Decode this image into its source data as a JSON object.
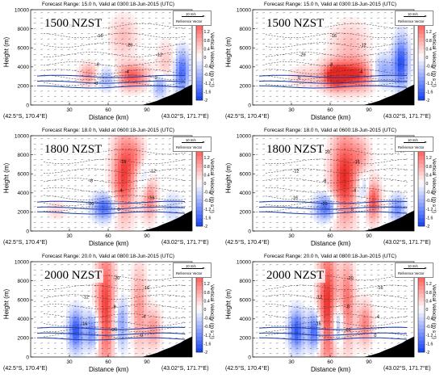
{
  "figure": {
    "ylabel": "Height (m)",
    "xlabel": "Distance (km)",
    "left_end": "(42.5°S, 170.4°E)",
    "right_end": "(43.02°S, 171.7°E)",
    "colorbar_label": "Vertical Velocity (m s⁻¹)",
    "colorbar_ticks": [
      "2",
      "1.6",
      "1.2",
      "0.8",
      "0.4",
      "0",
      "-0.4",
      "-0.8",
      "-1.2",
      "-1.6",
      "-2"
    ],
    "ref_speed": "10 m/s",
    "ref_label": "Reference Vector"
  },
  "chart_data": [
    {
      "type": "heatmap",
      "title": "Forecast Range: 15.0 h, Valid at 0300:18-Jun-2015 (UTC)",
      "time_label": "1500 NZST",
      "xlabel": "Distance (km)",
      "ylabel": "Height (m)",
      "xlim": [
        0,
        125
      ],
      "ylim": [
        0,
        10000
      ],
      "x_ticks": [
        30,
        60,
        90
      ],
      "y_ticks": [
        0,
        2000,
        4000,
        6000,
        8000,
        10000
      ],
      "clim": [
        -2,
        2
      ],
      "temperature_contours": [
        "-20",
        "-16",
        "-20",
        "-12",
        "-8",
        "-4",
        "0",
        "-8"
      ],
      "blobs": [
        {
          "x": 78,
          "z": 3000,
          "w": 1.6,
          "sx": 9,
          "sz": 900
        },
        {
          "x": 45,
          "z": 3200,
          "w": 1.0,
          "sx": 5,
          "sz": 800
        },
        {
          "x": 72,
          "z": 7200,
          "w": 0.6,
          "sx": 7,
          "sz": 1500
        },
        {
          "x": 105,
          "z": 4500,
          "w": 0.5,
          "sx": 5,
          "sz": 1500
        },
        {
          "x": 60,
          "z": 2800,
          "w": -0.9,
          "sx": 6,
          "sz": 800
        },
        {
          "x": 117,
          "z": 3500,
          "w": -1.6,
          "sx": 4,
          "sz": 1500
        },
        {
          "x": 100,
          "z": 2000,
          "w": -1.0,
          "sx": 4,
          "sz": 800
        }
      ]
    },
    {
      "type": "heatmap",
      "title": "Forecast Range: 15.0 h, Valid at 0300:18-Jun-2015 (UTC)",
      "time_label": "1500 NZST",
      "xlabel": "Distance (km)",
      "ylabel": "Height (m)",
      "xlim": [
        0,
        125
      ],
      "ylim": [
        0,
        10000
      ],
      "x_ticks": [
        30,
        60,
        90
      ],
      "y_ticks": [
        0,
        2000,
        4000,
        6000,
        8000,
        10000
      ],
      "clim": [
        -2,
        2
      ],
      "temperature_contours": [
        "-20",
        "-16",
        "-12",
        "-20",
        "-8",
        "-4",
        "0"
      ],
      "blobs": [
        {
          "x": 78,
          "z": 3200,
          "w": 2.0,
          "sx": 14,
          "sz": 1100
        },
        {
          "x": 63,
          "z": 3000,
          "w": 1.6,
          "sx": 6,
          "sz": 900
        },
        {
          "x": 75,
          "z": 6500,
          "w": 0.6,
          "sx": 10,
          "sz": 1500
        },
        {
          "x": 100,
          "z": 3500,
          "w": -1.4,
          "sx": 7,
          "sz": 1100
        },
        {
          "x": 115,
          "z": 4500,
          "w": -1.8,
          "sx": 4,
          "sz": 1800
        },
        {
          "x": 40,
          "z": 3000,
          "w": 0.5,
          "sx": 8,
          "sz": 700
        }
      ]
    },
    {
      "type": "heatmap",
      "title": "Forecast Range: 18.0 h, Valid at 0600:18-Jun-2015 (UTC)",
      "time_label": "1800 NZST",
      "xlabel": "Distance (km)",
      "ylabel": "Height (m)",
      "xlim": [
        0,
        125
      ],
      "ylim": [
        0,
        10000
      ],
      "x_ticks": [
        30,
        60,
        90
      ],
      "y_ticks": [
        0,
        2000,
        4000,
        6000,
        8000,
        10000
      ],
      "clim": [
        -2,
        2
      ],
      "temperature_contours": [
        "-20",
        "-16",
        "-12",
        "-8",
        "-4",
        "-16",
        "-20",
        "0"
      ],
      "blobs": [
        {
          "x": 72,
          "z": 5800,
          "w": 1.8,
          "sx": 6,
          "sz": 3000
        },
        {
          "x": 92,
          "z": 3500,
          "w": 1.3,
          "sx": 4,
          "sz": 1500
        },
        {
          "x": 82,
          "z": 8000,
          "w": 0.8,
          "sx": 5,
          "sz": 1400
        },
        {
          "x": 57,
          "z": 2500,
          "w": -1.6,
          "sx": 6,
          "sz": 900
        },
        {
          "x": 88,
          "z": 5500,
          "w": -0.6,
          "sx": 4,
          "sz": 1500
        },
        {
          "x": 110,
          "z": 2500,
          "w": -0.5,
          "sx": 5,
          "sz": 1000
        },
        {
          "x": 20,
          "z": 2200,
          "w": 0.4,
          "sx": 5,
          "sz": 700
        }
      ]
    },
    {
      "type": "heatmap",
      "title": "Forecast Range: 18.0 h, Valid at 0600:18-Jun-2015 (UTC)",
      "time_label": "1800 NZST",
      "xlabel": "Distance (km)",
      "ylabel": "Height (m)",
      "xlim": [
        0,
        125
      ],
      "ylim": [
        0,
        10000
      ],
      "x_ticks": [
        30,
        60,
        90
      ],
      "y_ticks": [
        0,
        2000,
        4000,
        6000,
        8000,
        10000
      ],
      "clim": [
        -2,
        2
      ],
      "temperature_contours": [
        "-20",
        "-16",
        "-12",
        "-8",
        "-4",
        "-16",
        "-20",
        "0"
      ],
      "blobs": [
        {
          "x": 71,
          "z": 5600,
          "w": 2.0,
          "sx": 7,
          "sz": 3200
        },
        {
          "x": 93,
          "z": 3200,
          "w": 1.8,
          "sx": 4,
          "sz": 1400
        },
        {
          "x": 84,
          "z": 7800,
          "w": 0.8,
          "sx": 5,
          "sz": 1400
        },
        {
          "x": 57,
          "z": 2500,
          "w": -1.6,
          "sx": 6,
          "sz": 900
        },
        {
          "x": 86,
          "z": 4200,
          "w": -0.8,
          "sx": 4,
          "sz": 1600
        },
        {
          "x": 112,
          "z": 2400,
          "w": -1.2,
          "sx": 4,
          "sz": 900
        }
      ]
    },
    {
      "type": "heatmap",
      "title": "Forecast Range: 20.0 h, Valid at 0800:18-Jun-2015 (UTC)",
      "time_label": "2000 NZST",
      "xlabel": "Distance (km)",
      "ylabel": "Height (m)",
      "xlim": [
        0,
        125
      ],
      "ylim": [
        0,
        10000
      ],
      "x_ticks": [
        30,
        60,
        90
      ],
      "y_ticks": [
        0,
        2000,
        4000,
        6000,
        8000,
        10000
      ],
      "clim": [
        -2,
        2
      ],
      "temperature_contours": [
        "-20",
        "-16",
        "-12",
        "-8",
        "-4",
        "-16",
        "-20",
        "0"
      ],
      "blobs": [
        {
          "x": 58,
          "z": 5200,
          "w": 1.8,
          "sx": 5,
          "sz": 4500
        },
        {
          "x": 84,
          "z": 5200,
          "w": 1.0,
          "sx": 4,
          "sz": 3000
        },
        {
          "x": 95,
          "z": 3000,
          "w": 1.0,
          "sx": 4,
          "sz": 1400
        },
        {
          "x": 35,
          "z": 2800,
          "w": -1.8,
          "sx": 4,
          "sz": 1400
        },
        {
          "x": 48,
          "z": 2800,
          "w": -1.4,
          "sx": 4,
          "sz": 1300
        },
        {
          "x": 70,
          "z": 3500,
          "w": -1.0,
          "sx": 4,
          "sz": 1800
        }
      ]
    },
    {
      "type": "heatmap",
      "title": "Forecast Range: 20.0 h, Valid at 0800:18-Jun-2015 (UTC)",
      "time_label": "2000 NZST",
      "xlabel": "Distance (km)",
      "ylabel": "Height (m)",
      "xlim": [
        0,
        125
      ],
      "ylim": [
        0,
        10000
      ],
      "x_ticks": [
        30,
        60,
        90
      ],
      "y_ticks": [
        0,
        2000,
        4000,
        6000,
        8000,
        10000
      ],
      "clim": [
        -2,
        2
      ],
      "temperature_contours": [
        "-20",
        "-16",
        "-12",
        "-8",
        "-4",
        "-16",
        "-20",
        "0"
      ],
      "blobs": [
        {
          "x": 58,
          "z": 5200,
          "w": 2.0,
          "sx": 5,
          "sz": 4500
        },
        {
          "x": 73,
          "z": 5500,
          "w": 1.4,
          "sx": 4,
          "sz": 3200
        },
        {
          "x": 87,
          "z": 3500,
          "w": 1.2,
          "sx": 4,
          "sz": 1500
        },
        {
          "x": 34,
          "z": 2800,
          "w": -1.8,
          "sx": 4,
          "sz": 1400
        },
        {
          "x": 48,
          "z": 2800,
          "w": -1.8,
          "sx": 4,
          "sz": 1300
        },
        {
          "x": 66,
          "z": 3500,
          "w": -1.2,
          "sx": 4,
          "sz": 1600
        }
      ]
    }
  ]
}
